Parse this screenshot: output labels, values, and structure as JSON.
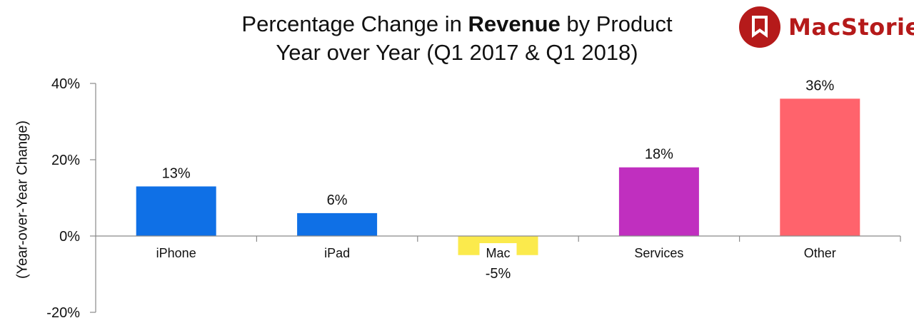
{
  "title": {
    "line1_before": "Percentage Change in ",
    "line1_bold": "Revenue",
    "line1_after": " by Product",
    "line2": "Year over Year (Q1 2017 & Q1 2018)"
  },
  "logo": {
    "text": "MacStories",
    "color": "#b51a1a"
  },
  "chart_data": {
    "type": "bar",
    "title": "Percentage Change in Revenue by Product Year over Year (Q1 2017 & Q1 2018)",
    "xlabel": "",
    "ylabel": "(Year-over-Year Change)",
    "ylim": [
      -20,
      40
    ],
    "yticks": [
      40,
      20,
      0,
      -20
    ],
    "ytick_labels": [
      "40%",
      "20%",
      "0%",
      "-20%"
    ],
    "grid": false,
    "legend": "none",
    "categories": [
      "iPhone",
      "iPad",
      "Mac",
      "Services",
      "Other"
    ],
    "values": [
      13,
      6,
      -5,
      18,
      36
    ],
    "data_labels": [
      "13%",
      "6%",
      "-5%",
      "18%",
      "36%"
    ],
    "colors": [
      "#0f70e6",
      "#0f70e6",
      "#fbea4c",
      "#c02fbf",
      "#ff636c"
    ]
  }
}
